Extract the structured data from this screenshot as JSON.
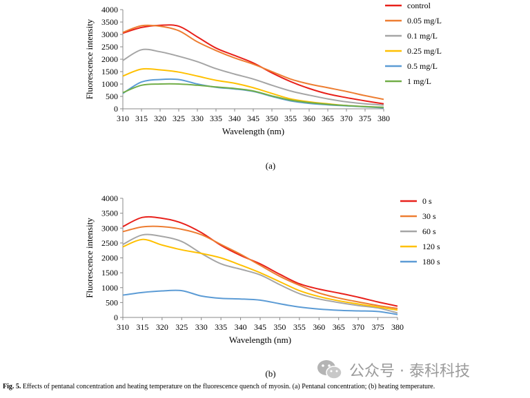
{
  "chart_data": [
    {
      "type": "line",
      "panel_label": "(a)",
      "xlabel": "Wavelength (nm)",
      "ylabel": "Fluorescence intensity",
      "xlim": [
        310,
        380
      ],
      "ylim": [
        0,
        4000
      ],
      "xticks": [
        310,
        315,
        320,
        325,
        330,
        335,
        340,
        345,
        350,
        355,
        360,
        365,
        370,
        375,
        380
      ],
      "yticks": [
        0,
        500,
        1000,
        1500,
        2000,
        2500,
        3000,
        3500,
        4000
      ],
      "legend": "right",
      "grid": false,
      "x": [
        310,
        315,
        320,
        325,
        330,
        335,
        340,
        345,
        350,
        355,
        360,
        365,
        370,
        375,
        380
      ],
      "series": [
        {
          "name": "control",
          "color": "#e8201a",
          "values": [
            3050,
            3280,
            3370,
            3330,
            2900,
            2450,
            2150,
            1850,
            1450,
            1100,
            820,
            600,
            450,
            320,
            200
          ]
        },
        {
          "name": "0.05 mg/L",
          "color": "#ed7d31",
          "values": [
            3080,
            3350,
            3330,
            3150,
            2700,
            2350,
            2050,
            1800,
            1500,
            1200,
            1000,
            850,
            700,
            530,
            380
          ]
        },
        {
          "name": "0.1 mg/L",
          "color": "#a5a5a5",
          "values": [
            1950,
            2380,
            2300,
            2120,
            1900,
            1620,
            1400,
            1200,
            950,
            720,
            550,
            400,
            280,
            200,
            150
          ]
        },
        {
          "name": "0.25 mg/L",
          "color": "#ffc000",
          "values": [
            1320,
            1600,
            1570,
            1480,
            1320,
            1150,
            1030,
            850,
            620,
            400,
            280,
            200,
            130,
            90,
            50
          ]
        },
        {
          "name": "0.5 mg/L",
          "color": "#5b9bd5",
          "values": [
            620,
            1080,
            1180,
            1180,
            1000,
            870,
            800,
            700,
            500,
            320,
            220,
            160,
            120,
            80,
            40
          ]
        },
        {
          "name": "1 mg/L",
          "color": "#70ad47",
          "values": [
            650,
            950,
            1000,
            1000,
            950,
            880,
            820,
            720,
            520,
            350,
            250,
            180,
            130,
            90,
            60
          ]
        }
      ]
    },
    {
      "type": "line",
      "panel_label": "(b)",
      "xlabel": "Wavelength (nm)",
      "ylabel": "Fluorescence intensity",
      "xlim": [
        310,
        380
      ],
      "ylim": [
        0,
        4000
      ],
      "xticks": [
        310,
        315,
        320,
        325,
        330,
        335,
        340,
        345,
        350,
        355,
        360,
        365,
        370,
        375,
        380
      ],
      "yticks": [
        0,
        500,
        1000,
        1500,
        2000,
        2500,
        3000,
        3500,
        4000
      ],
      "legend": "right",
      "grid": false,
      "x": [
        310,
        315,
        320,
        325,
        330,
        335,
        340,
        345,
        350,
        355,
        360,
        365,
        370,
        375,
        380
      ],
      "series": [
        {
          "name": "0 s",
          "color": "#e8201a",
          "values": [
            3050,
            3360,
            3330,
            3170,
            2850,
            2420,
            2080,
            1800,
            1450,
            1130,
            950,
            820,
            680,
            520,
            380
          ]
        },
        {
          "name": "30 s",
          "color": "#ed7d31",
          "values": [
            2880,
            3040,
            3050,
            2960,
            2780,
            2450,
            2120,
            1750,
            1380,
            1080,
            820,
            650,
            520,
            400,
            300
          ]
        },
        {
          "name": "60 s",
          "color": "#a5a5a5",
          "values": [
            2450,
            2770,
            2720,
            2550,
            2150,
            1800,
            1620,
            1430,
            1100,
            800,
            620,
            500,
            400,
            320,
            150
          ]
        },
        {
          "name": "120 s",
          "color": "#ffc000",
          "values": [
            2370,
            2620,
            2430,
            2270,
            2150,
            2000,
            1760,
            1500,
            1200,
            900,
            700,
            560,
            450,
            350,
            250
          ]
        },
        {
          "name": "180 s",
          "color": "#5b9bd5",
          "values": [
            750,
            840,
            890,
            900,
            720,
            640,
            620,
            580,
            460,
            350,
            280,
            240,
            220,
            200,
            100
          ]
        }
      ]
    }
  ],
  "caption": {
    "label": "Fig. 5.",
    "text": "Effects of pentanal concentration and heating temperature on the fluorescence quench of myosin. (a) Pentanal concentration; (b) heating temperature."
  },
  "watermark": {
    "text": "公众号 · 泰科科技",
    "icon": "wechat-logo-icon",
    "color": "#9a9a9a"
  }
}
